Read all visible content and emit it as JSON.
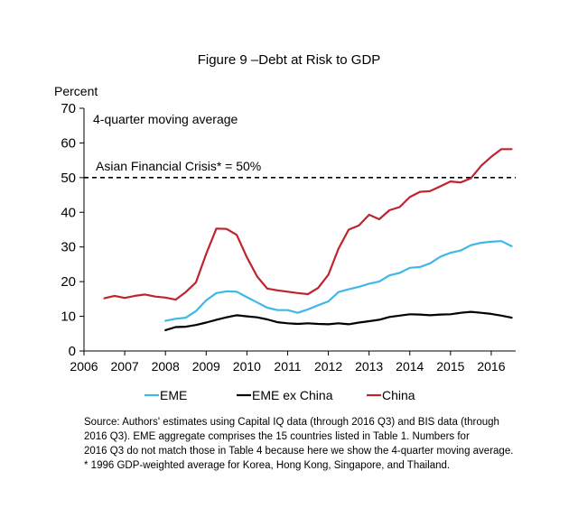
{
  "chart_data": {
    "type": "line",
    "title": "Figure 9 –Debt at Risk to GDP",
    "ylabel": "Percent",
    "ylim": [
      0,
      70
    ],
    "yticks": [
      0,
      10,
      20,
      30,
      40,
      50,
      60,
      70
    ],
    "xlim": [
      2006,
      2016.6
    ],
    "xticks": [
      "2006",
      "2007",
      "2008",
      "2009",
      "2010",
      "2011",
      "2012",
      "2013",
      "2014",
      "2015",
      "2016"
    ],
    "grid": false,
    "legend_position": "bottom",
    "annotation_text": "4-quarter moving average",
    "reference_line": {
      "label": "Asian Financial Crisis* = 50%",
      "value": 50
    },
    "colors": {
      "EME": "#3fb7e8",
      "EME ex China": "#000000",
      "China": "#c0232c"
    },
    "series": [
      {
        "name": "China",
        "x": [
          2006.5,
          2006.75,
          2007.0,
          2007.25,
          2007.5,
          2007.75,
          2008.0,
          2008.25,
          2008.5,
          2008.75,
          2009.0,
          2009.25,
          2009.5,
          2009.75,
          2010.0,
          2010.25,
          2010.5,
          2010.75,
          2011.0,
          2011.25,
          2011.5,
          2011.75,
          2012.0,
          2012.25,
          2012.5,
          2012.75,
          2013.0,
          2013.25,
          2013.5,
          2013.75,
          2014.0,
          2014.25,
          2014.5,
          2014.75,
          2015.0,
          2015.25,
          2015.5,
          2015.75,
          2016.0,
          2016.25,
          2016.5
        ],
        "values": [
          15.2,
          15.9,
          15.3,
          15.9,
          16.3,
          15.7,
          15.4,
          14.8,
          17.0,
          19.8,
          28.0,
          35.3,
          35.2,
          33.5,
          27.0,
          21.5,
          18.0,
          17.5,
          17.1,
          16.7,
          16.4,
          18.2,
          22.0,
          29.5,
          35.0,
          36.2,
          39.3,
          38.0,
          40.6,
          41.5,
          44.4,
          45.9,
          46.1,
          47.5,
          48.9,
          48.6,
          49.8,
          53.4,
          56.0,
          58.2,
          58.2
        ]
      },
      {
        "name": "EME",
        "x": [
          2008.0,
          2008.25,
          2008.5,
          2008.75,
          2009.0,
          2009.25,
          2009.5,
          2009.75,
          2010.0,
          2010.25,
          2010.5,
          2010.75,
          2011.0,
          2011.25,
          2011.5,
          2011.75,
          2012.0,
          2012.25,
          2012.5,
          2012.75,
          2013.0,
          2013.25,
          2013.5,
          2013.75,
          2014.0,
          2014.25,
          2014.5,
          2014.75,
          2015.0,
          2015.25,
          2015.5,
          2015.75,
          2016.0,
          2016.25,
          2016.5
        ],
        "values": [
          8.7,
          9.3,
          9.6,
          11.5,
          14.6,
          16.7,
          17.2,
          17.1,
          15.5,
          14.0,
          12.5,
          11.8,
          11.8,
          11.0,
          12.0,
          13.2,
          14.3,
          17.0,
          17.8,
          18.5,
          19.4,
          20.0,
          21.8,
          22.5,
          24.0,
          24.2,
          25.3,
          27.2,
          28.3,
          29.0,
          30.5,
          31.2,
          31.5,
          31.7,
          30.2
        ]
      },
      {
        "name": "EME ex China",
        "x": [
          2008.0,
          2008.25,
          2008.5,
          2008.75,
          2009.0,
          2009.25,
          2009.5,
          2009.75,
          2010.0,
          2010.25,
          2010.5,
          2010.75,
          2011.0,
          2011.25,
          2011.5,
          2011.75,
          2012.0,
          2012.25,
          2012.5,
          2012.75,
          2013.0,
          2013.25,
          2013.5,
          2013.75,
          2014.0,
          2014.25,
          2014.5,
          2014.75,
          2015.0,
          2015.25,
          2015.5,
          2015.75,
          2016.0,
          2016.25,
          2016.5
        ],
        "values": [
          6.0,
          6.9,
          7.0,
          7.5,
          8.2,
          9.0,
          9.7,
          10.3,
          10.0,
          9.7,
          9.1,
          8.3,
          8.0,
          7.8,
          8.0,
          7.8,
          7.7,
          8.0,
          7.7,
          8.2,
          8.6,
          9.0,
          9.8,
          10.2,
          10.6,
          10.5,
          10.3,
          10.5,
          10.6,
          11.0,
          11.3,
          11.0,
          10.7,
          10.2,
          9.6
        ]
      }
    ],
    "legend": [
      {
        "name": "EME"
      },
      {
        "name": "EME ex China"
      },
      {
        "name": "China"
      }
    ]
  },
  "notes": {
    "lines": [
      "Source: Authors' estimates using Capital IQ  data (through 2016 Q3) and BIS data (through",
      "2016 Q3). EME aggregate comprises the 15 countries listed in Table 1.  Numbers for",
      "2016 Q3 do not match those in Table 4 because here we show the 4-quarter moving average.",
      "* 1996 GDP-weighted average for Korea, Hong Kong, Singapore, and Thailand."
    ]
  }
}
